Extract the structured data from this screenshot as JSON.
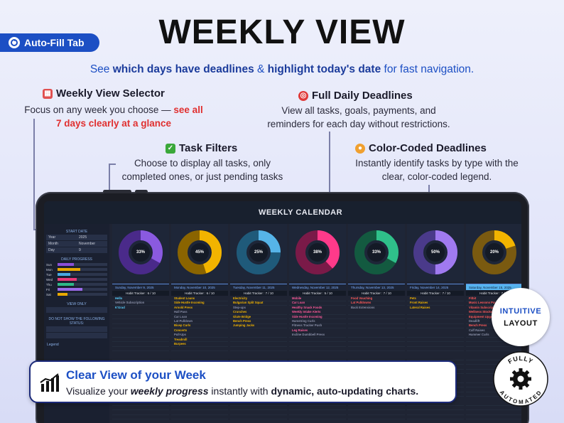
{
  "header": {
    "tab_label": "Auto-Fill Tab",
    "title": "WEEKLY VIEW",
    "subtitle": {
      "p1": "See ",
      "p2": "which days have deadlines",
      "p3": " & ",
      "p4": "highlight today's date",
      "p5": " for fast navigation."
    }
  },
  "callouts": {
    "selector": {
      "title": "Weekly View Selector",
      "icon": "calendar-icon",
      "body_plain": "Focus on any week you choose — ",
      "body_red1": "see all",
      "body_red2": "7 days clearly at a glance"
    },
    "deadlines": {
      "title": "Full Daily Deadlines",
      "icon": "target-icon",
      "body1": "View all tasks, goals, payments, and",
      "body2": "reminders for each day without restrictions."
    },
    "filters": {
      "title": "Task Filters",
      "icon": "checkbox-icon",
      "body1": "Choose to display all tasks, only",
      "body2": "completed ones, or just pending tasks"
    },
    "colors": {
      "title": "Color-Coded Deadlines",
      "icon": "palette-icon",
      "body1": "Instantly identify tasks by type with the",
      "body2": "clear, color-coded legend."
    }
  },
  "calendar": {
    "title": "WEEKLY CALENDAR",
    "sidebar": {
      "start_label": "START DATE",
      "rows": [
        {
          "k": "Year",
          "v": "2025"
        },
        {
          "k": "Month",
          "v": "November"
        },
        {
          "k": "Day",
          "v": "9"
        }
      ],
      "progress_label": "DAILY PROGRESS",
      "bars": [
        {
          "d": "Sun",
          "v": 0.33,
          "c": "#8a4fd8"
        },
        {
          "d": "Mon",
          "v": 0.45,
          "c": "#e8a800"
        },
        {
          "d": "Tue",
          "v": 0.25,
          "c": "#4aa8e0"
        },
        {
          "d": "Wed",
          "v": 0.38,
          "c": "#e83878"
        },
        {
          "d": "Thu",
          "v": 0.33,
          "c": "#2fb888"
        },
        {
          "d": "Fri",
          "v": 0.5,
          "c": "#9a6ae8"
        },
        {
          "d": "Sat",
          "v": 0.2,
          "c": "#e8a800"
        }
      ],
      "view_label": "VIEW ONLY",
      "hide_label": "DO NOT SHOW THE FOLLOWING STATUS:",
      "legend_label": "Legend"
    },
    "days": [
      {
        "pct": "33%",
        "value": 0.33,
        "fill": "#8a5ae0",
        "track": "#4a2a8a",
        "date": "Sunday, November 9, 2025",
        "habit": "Habit Tracker : 6 / 10",
        "tasks": [
          {
            "t": "Hello",
            "c": "#5ad0ff"
          },
          {
            "t": "Vehicle Subscription",
            "c": "#8a90a8"
          },
          {
            "t": "K'Grad",
            "c": "#5ad0ff"
          }
        ]
      },
      {
        "pct": "45%",
        "value": 0.45,
        "fill": "#f2b400",
        "track": "#8a6400",
        "date": "Monday, November 10, 2025",
        "habit": "Habit Tracker : 6 / 10",
        "tasks": [
          {
            "t": "Student Loans",
            "c": "#f2b400"
          },
          {
            "t": "Side Hustle Incoming",
            "c": "#f2b400"
          },
          {
            "t": "Arnold Press",
            "c": "#f2b400"
          },
          {
            "t": "Hall Pass",
            "c": "#8a90a8"
          },
          {
            "t": "Car Loan",
            "c": "#8a90a8"
          },
          {
            "t": "Lat Pulldown",
            "c": "#8a90a8"
          },
          {
            "t": "Bicep Curls",
            "c": "#f2b400"
          },
          {
            "t": "Concerts",
            "c": "#f2b400"
          },
          {
            "t": "Pull-Ups",
            "c": "#8a90a8"
          },
          {
            "t": "Treadmill",
            "c": "#f2b400"
          },
          {
            "t": "Burpees",
            "c": "#f2b400"
          }
        ]
      },
      {
        "pct": "25%",
        "value": 0.25,
        "fill": "#56b4e8",
        "track": "#1f5a7a",
        "date": "Tuesday, November 11, 2025",
        "habit": "Habit Tracker : 7 / 10",
        "tasks": [
          {
            "t": "Electricity",
            "c": "#f2b400"
          },
          {
            "t": "Bulgarian Split Squat",
            "c": "#f2b400"
          },
          {
            "t": "Step-ups",
            "c": "#8a90a8"
          },
          {
            "t": "Crunches",
            "c": "#f2b400"
          },
          {
            "t": "Glute Bridge",
            "c": "#f2b400"
          },
          {
            "t": "Bench Press",
            "c": "#f2b400"
          },
          {
            "t": "Jumping Jacks",
            "c": "#f2b400"
          }
        ]
      },
      {
        "pct": "38%",
        "value": 0.38,
        "fill": "#ff3a8a",
        "track": "#7a1a48",
        "date": "Wednesday, November 12, 2025",
        "habit": "Habit Tracker : 5 / 10",
        "tasks": [
          {
            "t": "Mobile",
            "c": "#ff5a9a"
          },
          {
            "t": "Car Loan",
            "c": "#ff5a9a"
          },
          {
            "t": "Healthy Snack Foods",
            "c": "#ff5a9a"
          },
          {
            "t": "Weekly Intake Alerts",
            "c": "#ff5a9a"
          },
          {
            "t": "Side Hustle Incoming",
            "c": "#ff5a9a"
          },
          {
            "t": "Hamstring Curls",
            "c": "#8a90a8"
          },
          {
            "t": "Fitness Tracker Push",
            "c": "#8a90a8"
          },
          {
            "t": "Leg Raises",
            "c": "#ff5a9a"
          },
          {
            "t": "Incline Dumbbell Press",
            "c": "#8a90a8"
          }
        ]
      },
      {
        "pct": "33%",
        "value": 0.33,
        "fill": "#2fc08a",
        "track": "#135a40",
        "date": "Thursday, November 13, 2025",
        "habit": "Habit Tracker : 7 / 10",
        "tasks": [
          {
            "t": "Food Vouching",
            "c": "#ff5a5a"
          },
          {
            "t": "Lat Pulldowns",
            "c": "#ff5a5a"
          },
          {
            "t": "Back Extensions",
            "c": "#8a90a8"
          }
        ]
      },
      {
        "pct": "50%",
        "value": 0.5,
        "fill": "#a07af0",
        "track": "#4a3a8a",
        "date": "Friday, November 14, 2025",
        "habit": "Habit Tracker : 7 / 10",
        "tasks": [
          {
            "t": "Pets",
            "c": "#f2b400"
          },
          {
            "t": "Front Raises",
            "c": "#f2b400"
          },
          {
            "t": "Lateral Raises",
            "c": "#f2b400"
          }
        ]
      },
      {
        "pct": "20%",
        "value": 0.2,
        "fill": "#f2b400",
        "track": "#7a5a10",
        "date": "Saturday, November 15, 2025",
        "habit": "Habit Tracker : 7 / 10",
        "highlight": true,
        "tasks": [
          {
            "t": "Fitbit",
            "c": "#ff5a5a"
          },
          {
            "t": "Music Lessons Pay",
            "c": "#ff5a5a"
          },
          {
            "t": "Vitamin Subscription",
            "c": "#ff5a5a"
          },
          {
            "t": "Wellness Stocks",
            "c": "#ff5a5a"
          },
          {
            "t": "Equipment Upgrade",
            "c": "#ff5a5a"
          },
          {
            "t": "Deadlift",
            "c": "#8a90a8"
          },
          {
            "t": "Bench Press",
            "c": "#ff5a5a"
          },
          {
            "t": "Calf Raises",
            "c": "#8a90a8"
          },
          {
            "t": "Hammer Curls",
            "c": "#8a90a8"
          }
        ]
      }
    ]
  },
  "banner": {
    "title": "Clear View of your Week",
    "b1": "Visualize your ",
    "b2": "weekly progress",
    "b3": " instantly with ",
    "b4": "dynamic, auto-updating charts.",
    "icon": "bar-chart-icon"
  },
  "badges": {
    "intuitive1": "INTUITIVE",
    "intuitive2": "LAYOUT",
    "auto1": "FULLY",
    "auto2": "AUTOMATED",
    "auto_icon": "gear-icon"
  }
}
